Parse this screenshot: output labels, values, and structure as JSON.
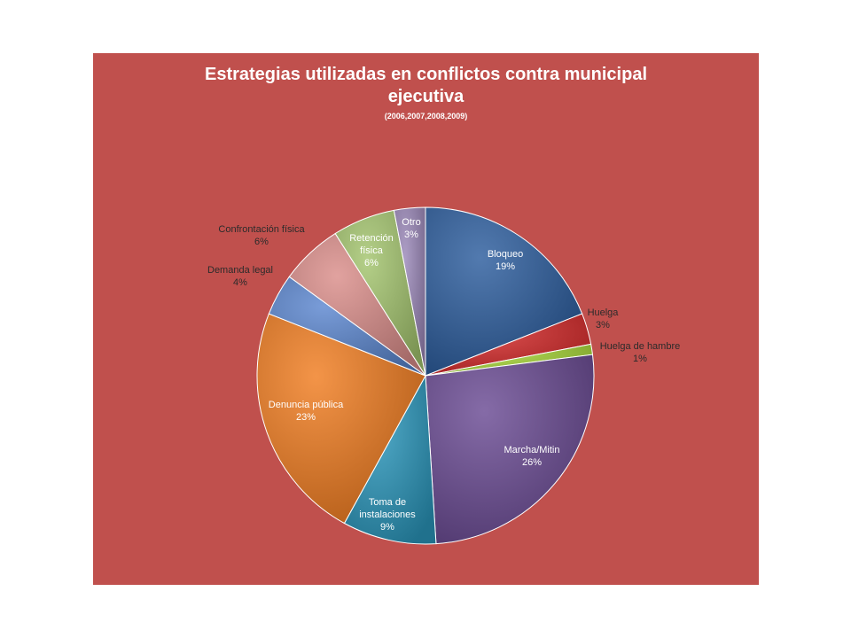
{
  "chart_data": {
    "type": "pie",
    "title": "Estrategias utilizadas en conflictos contra municipal ejecutiva",
    "subtitle": "(2006,2007,2008,2009)",
    "legend": "none",
    "slices": [
      {
        "label": "Bloqueo",
        "value": 19,
        "value_label": "19%",
        "color": "#2c5d9e"
      },
      {
        "label": "Huelga",
        "value": 3,
        "value_label": "3%",
        "color": "#d62a2a"
      },
      {
        "label": "Huelga de hambre",
        "value": 1,
        "value_label": "1%",
        "color": "#a8d838"
      },
      {
        "label": "Marcha/Mitin",
        "value": 26,
        "value_label": "26%",
        "color": "#6a4b94"
      },
      {
        "label": "Toma de instalaciones",
        "value": 9,
        "value_label": "9%",
        "color": "#2b97bc"
      },
      {
        "label": "Denuncia pública",
        "value": 23,
        "value_label": "23%",
        "color": "#f07c20"
      },
      {
        "label": "Demanda legal",
        "value": 4,
        "value_label": "4%",
        "color": "#5b86cf"
      },
      {
        "label": "Confrontación física",
        "value": 6,
        "value_label": "6%",
        "color": "#da8d8a"
      },
      {
        "label": "Retención física",
        "value": 6,
        "value_label": "6%",
        "color": "#a4c56e"
      },
      {
        "label": "Otro",
        "value": 3,
        "value_label": "3%",
        "color": "#9a87b8"
      }
    ]
  }
}
